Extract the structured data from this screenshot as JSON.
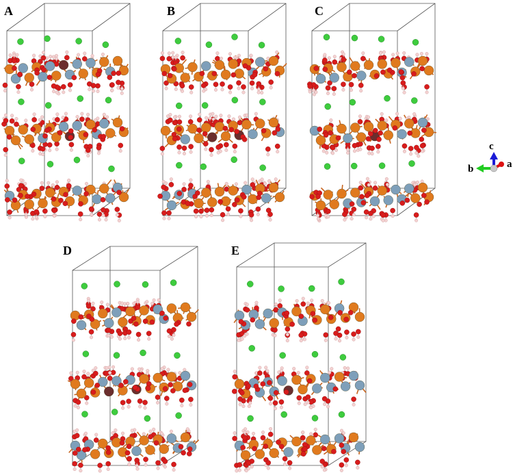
{
  "panels": [
    {
      "label": "A"
    },
    {
      "label": "B"
    },
    {
      "label": "C"
    },
    {
      "label": "D"
    },
    {
      "label": "E"
    }
  ],
  "axes": {
    "labels": [
      "c",
      "b",
      "a"
    ]
  }
}
